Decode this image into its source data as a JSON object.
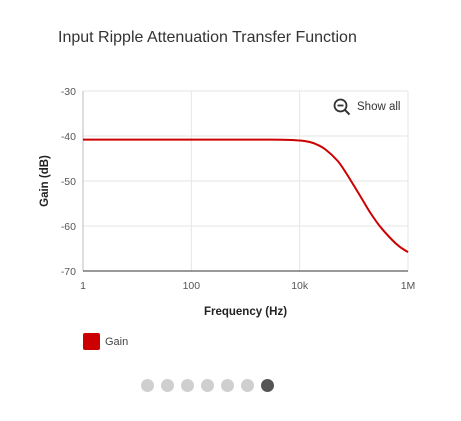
{
  "page": {
    "title": "Input Ripple Attenuation Transfer Function"
  },
  "toolbar": {
    "show_all_label": "Show all",
    "show_all_icon": "zoom-out-icon"
  },
  "chart_data": {
    "type": "line",
    "xlabel": "Frequency (Hz)",
    "ylabel": "Gain (dB)",
    "xscale": "log",
    "xlim": [
      1,
      1000000
    ],
    "ylim": [
      -70,
      -30
    ],
    "xticks": [
      {
        "value": 1,
        "label": "1"
      },
      {
        "value": 100,
        "label": "100"
      },
      {
        "value": 10000,
        "label": "10k"
      },
      {
        "value": 1000000,
        "label": "1M"
      }
    ],
    "yticks": [
      {
        "value": -30,
        "label": "-30"
      },
      {
        "value": -40,
        "label": "-40"
      },
      {
        "value": -50,
        "label": "-50"
      },
      {
        "value": -60,
        "label": "-60"
      },
      {
        "value": -70,
        "label": "-70"
      }
    ],
    "grid": true,
    "legend_position": "bottom-left",
    "series": [
      {
        "name": "Gain",
        "color": "#cc0000",
        "x": [
          1,
          10,
          100,
          1000,
          3000,
          6000,
          10000,
          15000,
          20000,
          30000,
          50000,
          70000,
          100000,
          150000,
          200000,
          300000,
          500000,
          700000,
          1000000
        ],
        "y": [
          -40.8,
          -40.8,
          -40.8,
          -40.8,
          -40.8,
          -40.85,
          -41.0,
          -41.3,
          -41.8,
          -43.0,
          -45.5,
          -48.0,
          -51.0,
          -54.5,
          -57.0,
          -60.0,
          -63.0,
          -64.6,
          -65.8
        ]
      }
    ]
  },
  "pager": {
    "count": 7,
    "active_index": 6
  }
}
